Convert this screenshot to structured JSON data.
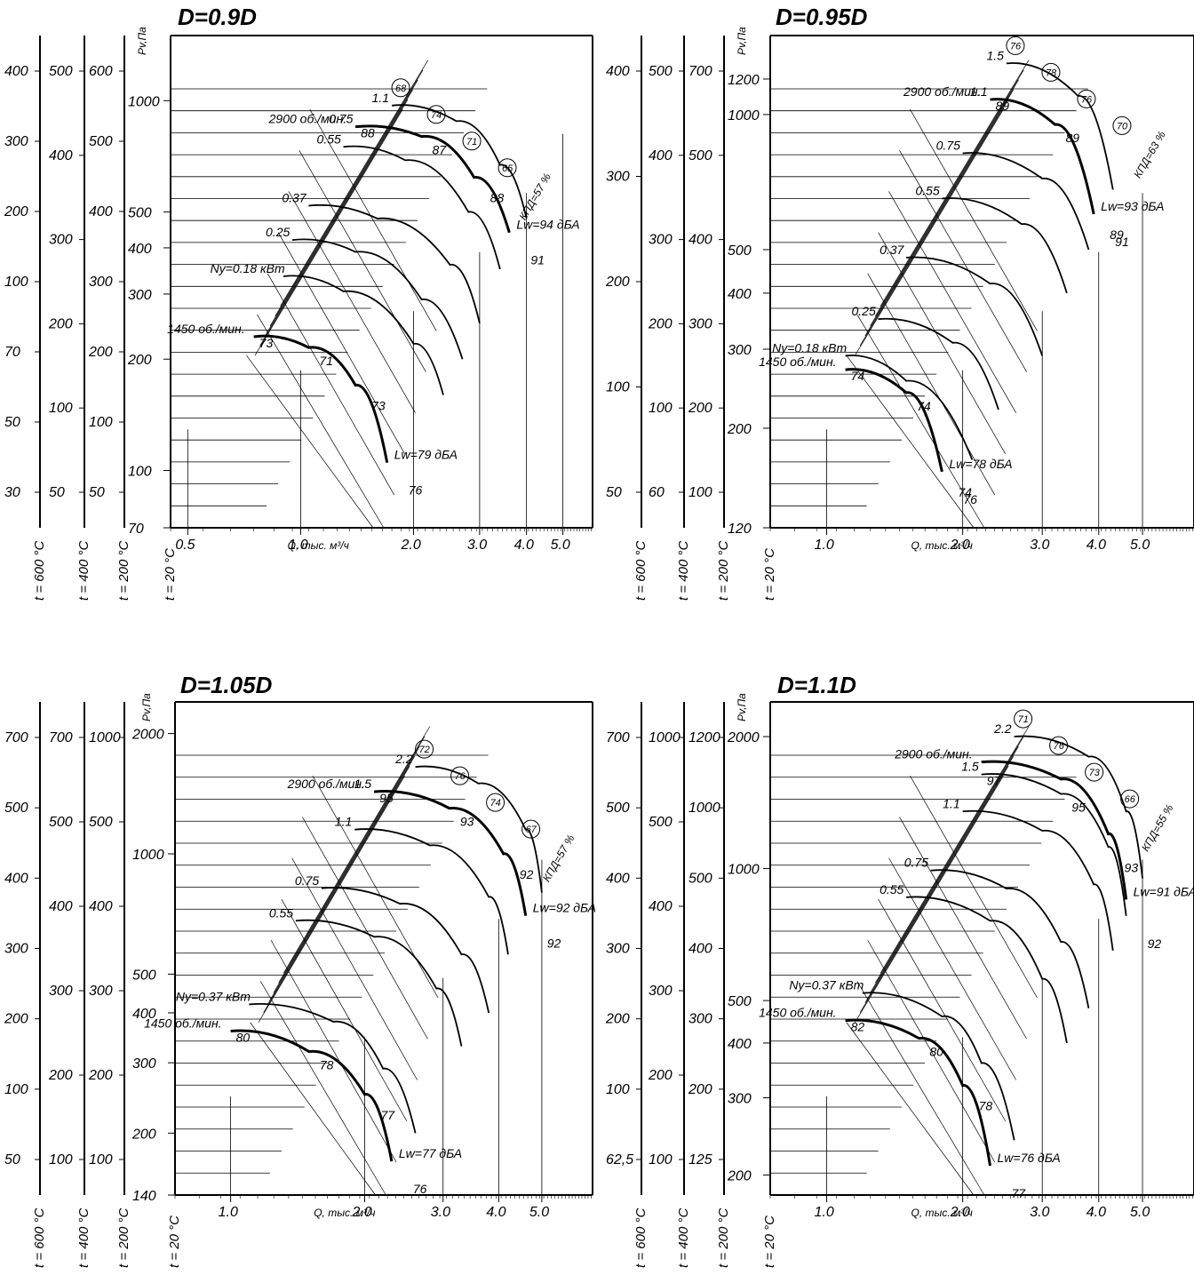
{
  "chart_data": [
    {
      "type": "line",
      "title": "D=0.9D",
      "ylabel": "Pv,Па",
      "xlabel": "Q, тыс. м³/ч",
      "x_scale": "log",
      "y_scale": "log",
      "xlim": [
        0.45,
        6.0
      ],
      "ylim": [
        70,
        1500
      ],
      "x_ticks": [
        "0.5",
        "1.0",
        "2.0",
        "3.0",
        "4.0",
        "5.0"
      ],
      "y_ticks": [
        "70",
        "100",
        "200",
        "300",
        "400",
        "500",
        "1000"
      ],
      "temp_axes": [
        {
          "label": "t = 600 °C",
          "ticks": [
            "30",
            "50",
            "70",
            "100",
            "200",
            "300",
            "400"
          ]
        },
        {
          "label": "t = 400 °C",
          "ticks": [
            "50",
            "100",
            "200",
            "300",
            "400",
            "500"
          ]
        },
        {
          "label": "t = 200 °C",
          "ticks": [
            "50",
            "100",
            "200",
            "300",
            "400",
            "500",
            "600"
          ]
        },
        {
          "label": "t = 20 °C",
          "ticks": []
        }
      ],
      "curves": [
        {
          "name": "1450 об./мин.",
          "bold": true,
          "x": [
            0.75,
            1.05,
            1.4,
            1.7
          ],
          "y": [
            230,
            215,
            170,
            105
          ]
        },
        {
          "name": "Ny=0.18 кВт",
          "x": [
            0.9,
            1.3,
            2.0,
            2.4
          ],
          "y": [
            335,
            305,
            220,
            160
          ]
        },
        {
          "name": "0.25",
          "x": [
            0.95,
            1.4,
            2.1,
            2.7
          ],
          "y": [
            420,
            390,
            290,
            200
          ]
        },
        {
          "name": "0.37",
          "x": [
            1.05,
            1.6,
            2.5,
            3.0
          ],
          "y": [
            520,
            480,
            360,
            250
          ]
        },
        {
          "name": "0.55",
          "x": [
            1.3,
            1.9,
            2.8,
            3.4
          ],
          "y": [
            750,
            690,
            500,
            350
          ]
        },
        {
          "name": "2900 об./мин.",
          "bold": true,
          "x": [
            1.4,
            2.1,
            2.9,
            3.6
          ],
          "y": [
            850,
            800,
            620,
            440
          ]
        },
        {
          "name": "0.75",
          "x": [
            1.4,
            2.1,
            2.9,
            3.6
          ],
          "y": [
            850,
            800,
            620,
            440
          ]
        },
        {
          "name": "1.1",
          "x": [
            1.75,
            2.6,
            3.4,
            4.0
          ],
          "y": [
            970,
            880,
            670,
            480
          ]
        }
      ],
      "point_labels": [
        "73",
        "71",
        "73",
        "76",
        "88",
        "87",
        "88",
        "91"
      ],
      "efficiency_labels": [
        "68",
        "74",
        "71",
        "65",
        "КПД=57 %"
      ],
      "noise_labels": [
        "Lw=79 дБА",
        "Lw=94 дБА"
      ]
    },
    {
      "type": "line",
      "title": "D=0.95D",
      "ylabel": "Pv,Па",
      "xlabel": "Q, тыс. м³/ч",
      "x_scale": "log",
      "y_scale": "log",
      "xlim": [
        0.75,
        6.5
      ],
      "ylim": [
        120,
        1500
      ],
      "x_ticks": [
        "1.0",
        "2.0",
        "3.0",
        "4.0",
        "5.0"
      ],
      "y_ticks": [
        "120",
        "200",
        "300",
        "400",
        "500",
        "1000",
        "1200"
      ],
      "temp_axes": [
        {
          "label": "t = 600 °C",
          "ticks": [
            "50",
            "100",
            "200",
            "300",
            "400"
          ]
        },
        {
          "label": "t = 400 °C",
          "ticks": [
            "60",
            "100",
            "200",
            "300",
            "400",
            "500"
          ]
        },
        {
          "label": "t = 200 °C",
          "ticks": [
            "100",
            "200",
            "300",
            "400",
            "500",
            "700"
          ]
        },
        {
          "label": "t = 20 °C",
          "ticks": []
        }
      ],
      "curves": [
        {
          "name": "1450 об./мин.",
          "bold": true,
          "x": [
            1.1,
            1.5,
            1.8
          ],
          "y": [
            270,
            240,
            160
          ]
        },
        {
          "name": "Ny=0.18 кВт",
          "x": [
            1.1,
            1.5,
            2.1
          ],
          "y": [
            290,
            255,
            170
          ]
        },
        {
          "name": "0.25",
          "x": [
            1.3,
            1.9,
            2.4
          ],
          "y": [
            350,
            310,
            220
          ]
        },
        {
          "name": "0.37",
          "x": [
            1.5,
            2.3,
            3.0
          ],
          "y": [
            480,
            420,
            290
          ]
        },
        {
          "name": "0.55",
          "x": [
            1.8,
            2.7,
            3.4
          ],
          "y": [
            650,
            570,
            400
          ]
        },
        {
          "name": "0.75",
          "x": [
            2.0,
            3.0,
            3.8
          ],
          "y": [
            820,
            720,
            500
          ]
        },
        {
          "name": "2900 об./мин.",
          "bold": true,
          "x": [
            2.3,
            3.2,
            3.9
          ],
          "y": [
            1080,
            950,
            600
          ]
        },
        {
          "name": "1.1",
          "x": [
            2.3,
            3.2,
            3.9
          ],
          "y": [
            1080,
            950,
            600
          ]
        },
        {
          "name": "1.5",
          "x": [
            2.5,
            3.6,
            4.3
          ],
          "y": [
            1300,
            1100,
            680
          ]
        }
      ],
      "point_labels": [
        "74",
        "74",
        "74",
        "76",
        "89",
        "89",
        "89",
        "91"
      ],
      "efficiency_labels": [
        "76",
        "78",
        "76",
        "70",
        "КПД=63 %"
      ],
      "noise_labels": [
        "Lw=78 дБА",
        "Lw=93 дБА"
      ]
    },
    {
      "type": "line",
      "title": "D=1.05D",
      "ylabel": "Pv,Па",
      "xlabel": "Q, тыс. м³/ч",
      "x_scale": "log",
      "y_scale": "log",
      "xlim": [
        0.75,
        6.5
      ],
      "ylim": [
        140,
        2400
      ],
      "x_ticks": [
        "1.0",
        "2.0",
        "3.0",
        "4.0",
        "5.0"
      ],
      "y_ticks": [
        "140",
        "200",
        "300",
        "400",
        "500",
        "1000",
        "2000"
      ],
      "temp_axes": [
        {
          "label": "t = 600 °C",
          "ticks": [
            "50",
            "100",
            "200",
            "300",
            "400",
            "500",
            "700"
          ]
        },
        {
          "label": "t = 400 °C",
          "ticks": [
            "100",
            "200",
            "300",
            "400",
            "500",
            "700"
          ]
        },
        {
          "label": "t = 200 °C",
          "ticks": [
            "100",
            "200",
            "300",
            "400",
            "500",
            "1000"
          ]
        },
        {
          "label": "t = 20 °C",
          "ticks": []
        }
      ],
      "curves": [
        {
          "name": "1450 об./мин.",
          "bold": true,
          "x": [
            1.0,
            1.5,
            2.0,
            2.3
          ],
          "y": [
            360,
            320,
            250,
            170
          ]
        },
        {
          "name": "Ny=0.37 кВт",
          "x": [
            1.1,
            1.7,
            2.2,
            2.6
          ],
          "y": [
            420,
            380,
            290,
            200
          ]
        },
        {
          "name": "0.55",
          "x": [
            1.4,
            2.1,
            2.9,
            3.3
          ],
          "y": [
            680,
            620,
            460,
            330
          ]
        },
        {
          "name": "0.75",
          "x": [
            1.6,
            2.4,
            3.3,
            3.8
          ],
          "y": [
            820,
            750,
            560,
            400
          ]
        },
        {
          "name": "1.1",
          "x": [
            1.9,
            2.8,
            3.8,
            4.2
          ],
          "y": [
            1150,
            1050,
            780,
            560
          ]
        },
        {
          "name": "2900 об./мин.",
          "bold": true,
          "x": [
            2.1,
            3.1,
            4.1,
            4.6
          ],
          "y": [
            1430,
            1300,
            1000,
            700
          ]
        },
        {
          "name": "1.5",
          "x": [
            2.1,
            3.1,
            4.1,
            4.6
          ],
          "y": [
            1430,
            1300,
            1000,
            700
          ]
        },
        {
          "name": "2.2",
          "x": [
            2.6,
            3.6,
            4.6,
            5.0
          ],
          "y": [
            1650,
            1500,
            1150,
            800
          ]
        }
      ],
      "point_labels": [
        "80",
        "78",
        "77",
        "76",
        "95",
        "93",
        "92",
        "92"
      ],
      "efficiency_labels": [
        "72",
        "76",
        "74",
        "67",
        "КПД=57 %"
      ],
      "noise_labels": [
        "Lw=77 дБА",
        "Lw=92 дБА"
      ]
    },
    {
      "type": "line",
      "title": "D=1.1D",
      "ylabel": "Pv,Па",
      "xlabel": "Q, тыс. м³/ч",
      "x_scale": "log",
      "y_scale": "log",
      "xlim": [
        0.75,
        6.5
      ],
      "ylim": [
        180,
        2400
      ],
      "x_ticks": [
        "1.0",
        "2.0",
        "3.0",
        "4.0",
        "5.0"
      ],
      "y_ticks": [
        "200",
        "300",
        "400",
        "500",
        "1000",
        "2000"
      ],
      "temp_axes": [
        {
          "label": "t = 600 °C",
          "ticks": [
            "62,5",
            "100",
            "200",
            "300",
            "400",
            "500",
            "700"
          ]
        },
        {
          "label": "t = 400 °C",
          "ticks": [
            "100",
            "200",
            "300",
            "400",
            "500",
            "1000"
          ]
        },
        {
          "label": "t = 200 °C",
          "ticks": [
            "125",
            "200",
            "300",
            "400",
            "500",
            "1000",
            "1200"
          ]
        },
        {
          "label": "t = 20 °C",
          "ticks": []
        }
      ],
      "curves": [
        {
          "name": "1450 об./мин.",
          "bold": true,
          "x": [
            1.1,
            1.6,
            2.0,
            2.3
          ],
          "y": [
            450,
            410,
            320,
            210
          ]
        },
        {
          "name": "Ny=0.37 кВт",
          "x": [
            1.2,
            1.8,
            2.2,
            2.6
          ],
          "y": [
            520,
            460,
            360,
            240
          ]
        },
        {
          "name": "0.55",
          "x": [
            1.5,
            2.3,
            3.0,
            3.4
          ],
          "y": [
            860,
            760,
            560,
            400
          ]
        },
        {
          "name": "0.75",
          "x": [
            1.7,
            2.5,
            3.3,
            3.8
          ],
          "y": [
            990,
            900,
            680,
            480
          ]
        },
        {
          "name": "1.1",
          "x": [
            2.0,
            3.0,
            3.9,
            4.3
          ],
          "y": [
            1350,
            1220,
            920,
            650
          ]
        },
        {
          "name": "1.5",
          "x": [
            2.2,
            3.3,
            4.2,
            4.6
          ],
          "y": [
            1640,
            1480,
            1120,
            780
          ]
        },
        {
          "name": "2900 об./мин.",
          "bold": true,
          "x": [
            2.2,
            3.3,
            4.2,
            4.6
          ],
          "y": [
            1750,
            1600,
            1200,
            850
          ]
        },
        {
          "name": "2.2",
          "x": [
            2.6,
            3.8,
            4.6,
            5.0
          ],
          "y": [
            2000,
            1800,
            1350,
            950
          ]
        }
      ],
      "point_labels": [
        "82",
        "80",
        "78",
        "77",
        "97",
        "95",
        "93",
        "92"
      ],
      "efficiency_labels": [
        "71",
        "76",
        "73",
        "66",
        "КПД=55 %"
      ],
      "noise_labels": [
        "Lw=76 дБА",
        "Lw=91 дБА"
      ]
    }
  ]
}
